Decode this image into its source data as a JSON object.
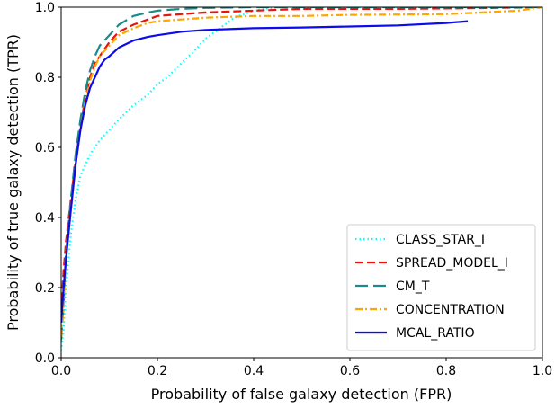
{
  "chart_data": {
    "type": "line",
    "title": "",
    "xlabel": "Probability of false galaxy detection (FPR)",
    "ylabel": "Probability of true galaxy detection (TPR)",
    "xlim": [
      0.0,
      1.0
    ],
    "ylim": [
      0.0,
      1.0
    ],
    "xticks": [
      "0.0",
      "0.2",
      "0.4",
      "0.6",
      "0.8",
      "1.0"
    ],
    "yticks": [
      "0.0",
      "0.2",
      "0.4",
      "0.6",
      "0.8",
      "1.0"
    ],
    "grid": false,
    "legend_position": "lower right",
    "series": [
      {
        "name": "CLASS_STAR_I",
        "color": "#00ffff",
        "dash": "dotted",
        "x": [
          0.0,
          0.005,
          0.01,
          0.02,
          0.03,
          0.04,
          0.06,
          0.08,
          0.1,
          0.12,
          0.15,
          0.18,
          0.2,
          0.22,
          0.25,
          0.28,
          0.3,
          0.33,
          0.36,
          0.4,
          0.45,
          1.0
        ],
        "y": [
          0.02,
          0.08,
          0.2,
          0.35,
          0.45,
          0.52,
          0.58,
          0.62,
          0.65,
          0.68,
          0.72,
          0.75,
          0.78,
          0.8,
          0.84,
          0.88,
          0.91,
          0.94,
          0.97,
          0.99,
          1.0,
          1.0
        ]
      },
      {
        "name": "SPREAD_MODEL_I",
        "color": "#e8130a",
        "dash": "dashed",
        "x": [
          0.0,
          0.005,
          0.01,
          0.02,
          0.03,
          0.04,
          0.05,
          0.06,
          0.07,
          0.08,
          0.1,
          0.12,
          0.15,
          0.18,
          0.2,
          0.25,
          0.3,
          0.4,
          0.5,
          0.7,
          0.9,
          1.0
        ],
        "y": [
          0.13,
          0.25,
          0.33,
          0.45,
          0.56,
          0.66,
          0.74,
          0.8,
          0.84,
          0.86,
          0.9,
          0.93,
          0.95,
          0.965,
          0.975,
          0.98,
          0.985,
          0.99,
          0.995,
          0.995,
          0.998,
          1.0
        ]
      },
      {
        "name": "CM_T",
        "color": "#1a8a8a",
        "dash": "dashdash",
        "x": [
          0.0,
          0.005,
          0.01,
          0.02,
          0.03,
          0.04,
          0.05,
          0.06,
          0.07,
          0.08,
          0.1,
          0.12,
          0.15,
          0.18,
          0.2,
          0.25,
          0.3,
          0.4,
          0.5,
          0.7,
          1.0
        ],
        "y": [
          0.05,
          0.15,
          0.3,
          0.45,
          0.58,
          0.68,
          0.76,
          0.82,
          0.86,
          0.89,
          0.92,
          0.95,
          0.975,
          0.985,
          0.99,
          0.995,
          0.998,
          1.0,
          1.0,
          1.0,
          1.0
        ]
      },
      {
        "name": "CONCENTRATION",
        "color": "#ffa500",
        "dash": "dashdot",
        "x": [
          0.0,
          0.005,
          0.01,
          0.02,
          0.03,
          0.04,
          0.05,
          0.06,
          0.07,
          0.08,
          0.1,
          0.12,
          0.15,
          0.18,
          0.2,
          0.25,
          0.3,
          0.4,
          0.5,
          0.6,
          0.8,
          0.95,
          1.0
        ],
        "y": [
          0.06,
          0.15,
          0.28,
          0.42,
          0.55,
          0.65,
          0.73,
          0.79,
          0.83,
          0.86,
          0.89,
          0.92,
          0.94,
          0.955,
          0.96,
          0.965,
          0.97,
          0.975,
          0.975,
          0.978,
          0.98,
          0.99,
          1.0
        ]
      },
      {
        "name": "MCAL_RATIO",
        "color": "#0b0bf0",
        "dash": "solid",
        "x": [
          0.0,
          0.005,
          0.01,
          0.015,
          0.02,
          0.03,
          0.04,
          0.05,
          0.06,
          0.07,
          0.08,
          0.09,
          0.1,
          0.12,
          0.15,
          0.18,
          0.2,
          0.25,
          0.3,
          0.4,
          0.5,
          0.6,
          0.7,
          0.8,
          0.845
        ],
        "y": [
          0.1,
          0.2,
          0.28,
          0.35,
          0.42,
          0.55,
          0.65,
          0.72,
          0.77,
          0.8,
          0.83,
          0.85,
          0.86,
          0.885,
          0.905,
          0.915,
          0.92,
          0.93,
          0.935,
          0.94,
          0.942,
          0.945,
          0.948,
          0.955,
          0.96
        ]
      }
    ]
  }
}
